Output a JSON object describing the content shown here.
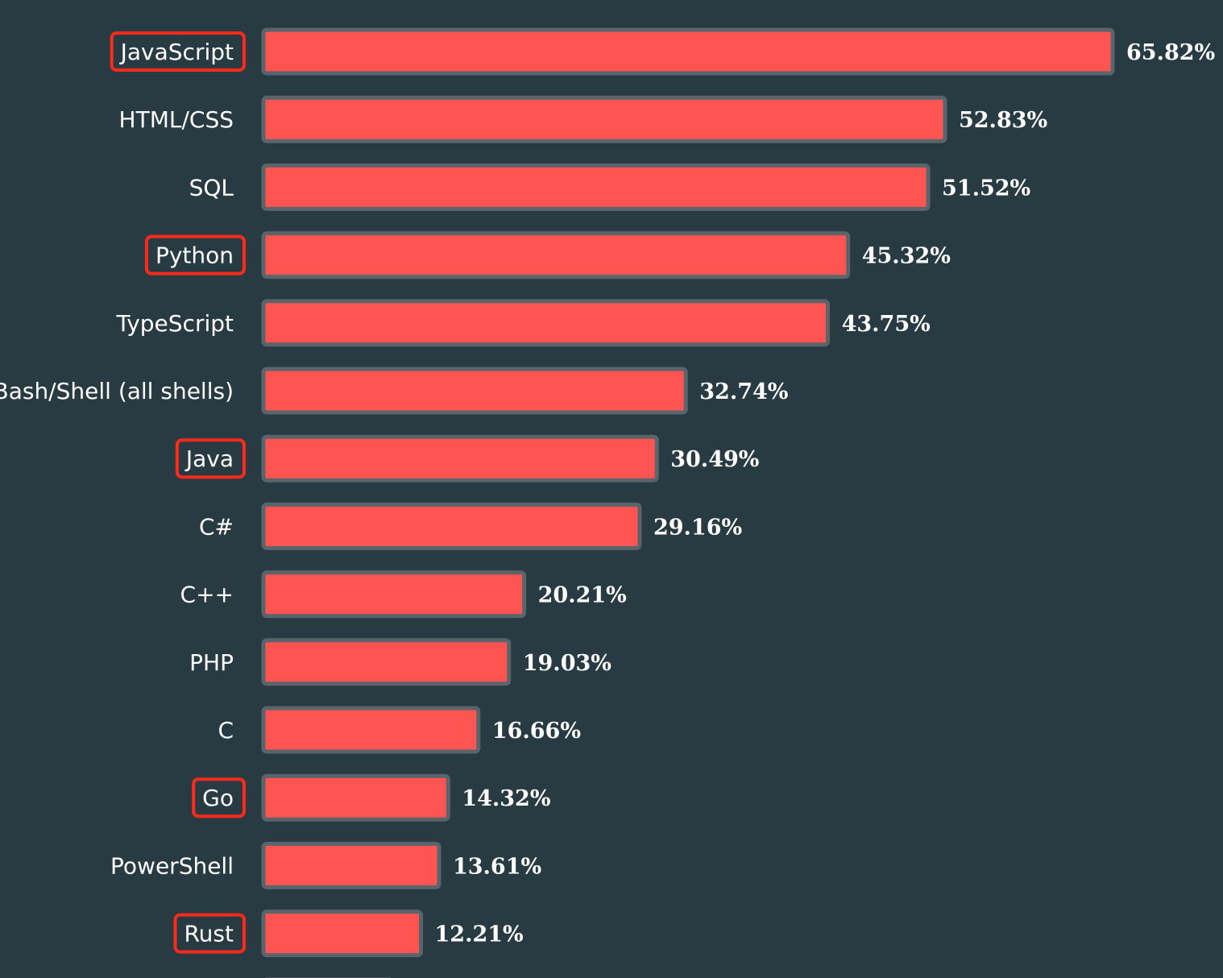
{
  "colors": {
    "background": "#283b43",
    "bar_fill": "#ff5552",
    "bar_border": "#59646b",
    "highlight_box": "#ff2a1a",
    "text": "#ffffff"
  },
  "chart_data": {
    "type": "bar",
    "orientation": "horizontal",
    "categories": [
      "JavaScript",
      "HTML/CSS",
      "SQL",
      "Python",
      "TypeScript",
      "Bash/Shell (all shells)",
      "Java",
      "C#",
      "C++",
      "PHP",
      "C",
      "Go",
      "PowerShell",
      "Rust"
    ],
    "values": [
      65.82,
      52.83,
      51.52,
      45.32,
      43.75,
      32.74,
      30.49,
      29.16,
      20.21,
      19.03,
      16.66,
      14.32,
      13.61,
      12.21
    ],
    "value_labels": [
      "65.82%",
      "52.83%",
      "51.52%",
      "45.32%",
      "43.75%",
      "32.74%",
      "30.49%",
      "29.16%",
      "20.21%",
      "19.03%",
      "16.66%",
      "14.32%",
      "13.61%",
      "12.21%"
    ],
    "highlighted": [
      "JavaScript",
      "Python",
      "Java",
      "Go",
      "Rust"
    ],
    "unit": "%",
    "grid": false,
    "legend": "none",
    "title": "",
    "xlabel": "",
    "ylabel": ""
  }
}
